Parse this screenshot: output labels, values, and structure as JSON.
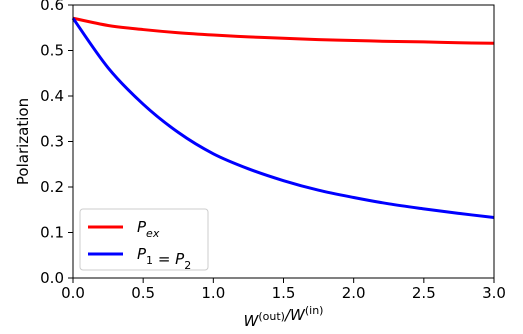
{
  "chart_data": {
    "type": "line",
    "xlabel": "W^(out)/W^(in)",
    "ylabel": "Polarization",
    "xlim": [
      0.0,
      3.0
    ],
    "ylim": [
      0.0,
      0.6
    ],
    "x_ticks": [
      "0.0",
      "0.5",
      "1.0",
      "1.5",
      "2.0",
      "2.5",
      "3.0"
    ],
    "y_ticks": [
      "0.0",
      "0.1",
      "0.2",
      "0.3",
      "0.4",
      "0.5",
      "0.6"
    ],
    "grid": false,
    "legend_position": "lower-left",
    "series": [
      {
        "name": "P_ex",
        "color": "#ff0000",
        "x": [
          0.0,
          0.25,
          0.5,
          0.75,
          1.0,
          1.25,
          1.5,
          1.75,
          2.0,
          2.25,
          2.5,
          2.75,
          3.0
        ],
        "y": [
          0.571,
          0.555,
          0.546,
          0.539,
          0.534,
          0.53,
          0.527,
          0.524,
          0.522,
          0.52,
          0.519,
          0.517,
          0.516
        ]
      },
      {
        "name": "P_1 = P_2",
        "color": "#0000ff",
        "x": [
          0.0,
          0.25,
          0.5,
          0.75,
          1.0,
          1.25,
          1.5,
          1.75,
          2.0,
          2.25,
          2.5,
          2.75,
          3.0
        ],
        "y": [
          0.571,
          0.462,
          0.382,
          0.32,
          0.273,
          0.24,
          0.214,
          0.193,
          0.177,
          0.163,
          0.152,
          0.142,
          0.133
        ]
      }
    ]
  }
}
